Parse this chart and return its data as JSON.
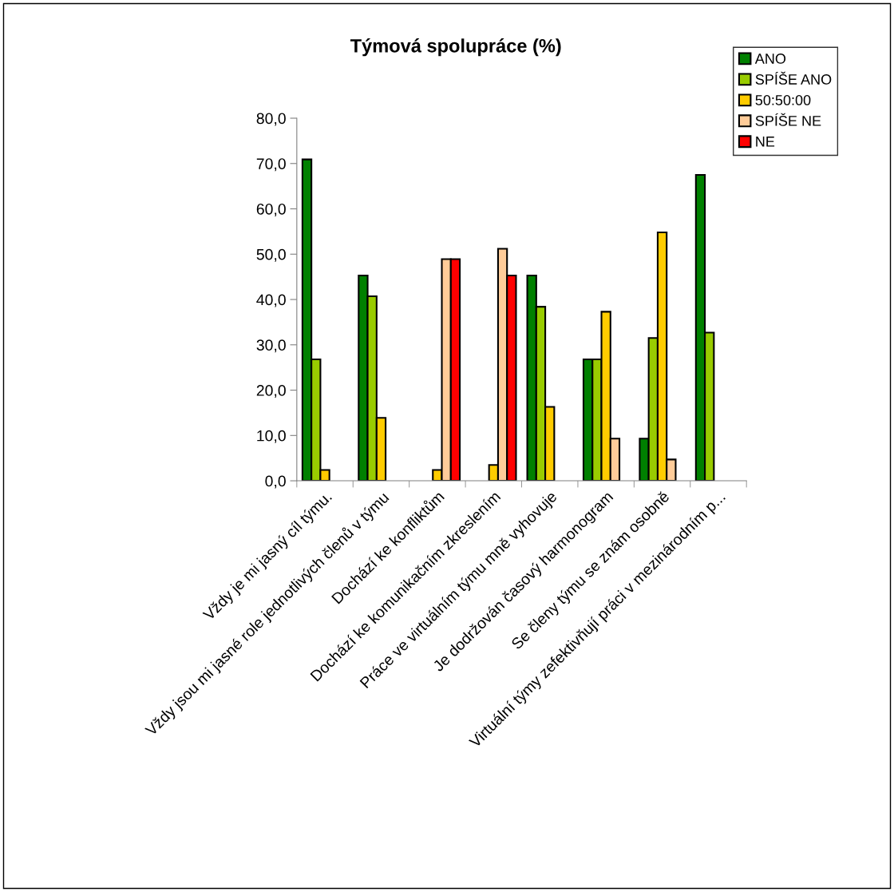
{
  "chart_data": {
    "type": "bar",
    "title": "Týmová spolupráce (%)",
    "categories": [
      "Vždy je mi jasný cíl týmu.",
      "Vždy jsou mi jasné role jednotlivých členů v týmu",
      "Dochází ke konfliktům",
      "Dochází ke komunikačním zkreslením",
      "Práce ve virtuálním týmu mně vyhovuje",
      "Je dodržován časový harmonogram",
      "Se členy týmu se znám osobně",
      "Virtuální týmy zefektivňují práci v mezinárodním p..."
    ],
    "series": [
      {
        "name": "ANO",
        "color": "#008000",
        "values": [
          70.9,
          45.3,
          null,
          null,
          45.3,
          26.8,
          9.3,
          67.5
        ]
      },
      {
        "name": "SPÍŠE ANO",
        "color": "#99cc00",
        "values": [
          26.8,
          40.7,
          null,
          null,
          38.4,
          26.8,
          31.5,
          32.7
        ]
      },
      {
        "name": "50:50:00",
        "color": "#ffcc00",
        "values": [
          2.4,
          13.9,
          2.4,
          3.5,
          16.3,
          37.3,
          54.8,
          null
        ]
      },
      {
        "name": "SPÍŠE NE",
        "color": "#ffcc99",
        "values": [
          null,
          null,
          48.9,
          51.2,
          null,
          9.3,
          4.7,
          null
        ]
      },
      {
        "name": "NE",
        "color": "#ff0000",
        "values": [
          null,
          null,
          48.9,
          45.3,
          null,
          null,
          null,
          null
        ]
      }
    ],
    "ylim": [
      0,
      80
    ],
    "yticks": [
      {
        "value": 0,
        "label": "0,0"
      },
      {
        "value": 10,
        "label": "10,0"
      },
      {
        "value": 20,
        "label": "20,0"
      },
      {
        "value": 30,
        "label": "30,0"
      },
      {
        "value": 40,
        "label": "40,0"
      },
      {
        "value": 50,
        "label": "50,0"
      },
      {
        "value": 60,
        "label": "60,0"
      },
      {
        "value": 70,
        "label": "70,0"
      },
      {
        "value": 80,
        "label": "80,0"
      }
    ],
    "grid": false,
    "legend": "top right"
  }
}
